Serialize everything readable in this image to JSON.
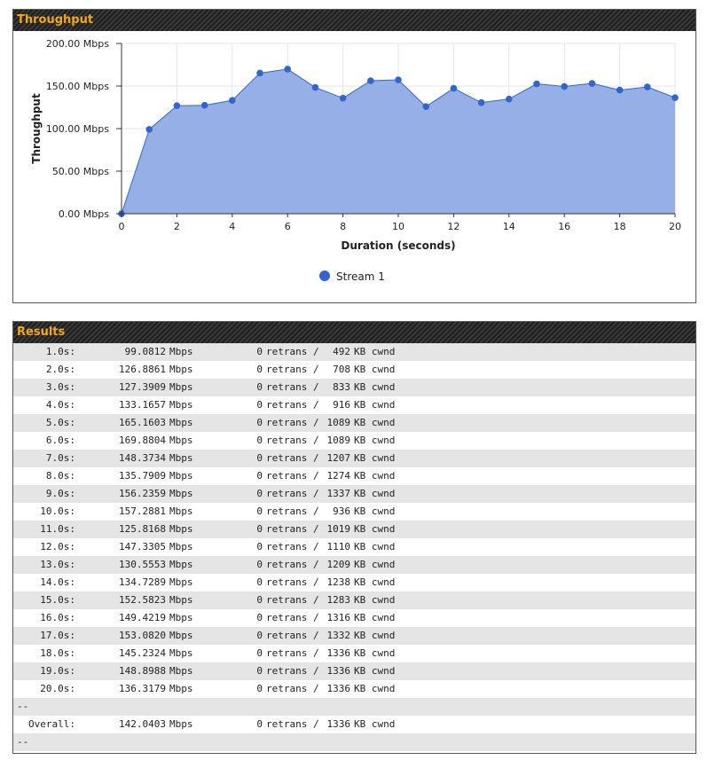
{
  "throughput": {
    "title": "Throughput"
  },
  "chart_data": {
    "type": "area",
    "xlabel": "Duration (seconds)",
    "ylabel": "Throughput",
    "xlim": [
      0,
      20
    ],
    "ylim": [
      0,
      200
    ],
    "x_ticks": [
      "0",
      "2",
      "4",
      "6",
      "8",
      "10",
      "12",
      "14",
      "16",
      "18",
      "20"
    ],
    "y_ticks": [
      "0.00 Mbps",
      "50.00 Mbps",
      "100.00 Mbps",
      "150.00 Mbps",
      "200.00 Mbps"
    ],
    "grid": true,
    "legend_position": "bottom",
    "series": [
      {
        "name": "Stream 1",
        "color": "#3366cc",
        "fill": "#96afe6",
        "x": [
          0,
          1,
          2,
          3,
          4,
          5,
          6,
          7,
          8,
          9,
          10,
          11,
          12,
          13,
          14,
          15,
          16,
          17,
          18,
          19,
          20
        ],
        "y": [
          0,
          99.0812,
          126.8861,
          127.3909,
          133.1657,
          165.1603,
          169.8804,
          148.3734,
          135.7909,
          156.2359,
          157.2881,
          125.8168,
          147.3305,
          130.5553,
          134.7289,
          152.5823,
          149.4219,
          153.082,
          145.2324,
          148.8988,
          136.3179
        ]
      }
    ]
  },
  "results": {
    "title": "Results",
    "rows": [
      {
        "time": "1.0s:",
        "rate": "99.0812",
        "unit": "Mbps",
        "retrans": "0",
        "retrans_label": "retrans /",
        "cwnd": "492",
        "cwnd_label": "KB cwnd"
      },
      {
        "time": "2.0s:",
        "rate": "126.8861",
        "unit": "Mbps",
        "retrans": "0",
        "retrans_label": "retrans /",
        "cwnd": "708",
        "cwnd_label": "KB cwnd"
      },
      {
        "time": "3.0s:",
        "rate": "127.3909",
        "unit": "Mbps",
        "retrans": "0",
        "retrans_label": "retrans /",
        "cwnd": "833",
        "cwnd_label": "KB cwnd"
      },
      {
        "time": "4.0s:",
        "rate": "133.1657",
        "unit": "Mbps",
        "retrans": "0",
        "retrans_label": "retrans /",
        "cwnd": "916",
        "cwnd_label": "KB cwnd"
      },
      {
        "time": "5.0s:",
        "rate": "165.1603",
        "unit": "Mbps",
        "retrans": "0",
        "retrans_label": "retrans /",
        "cwnd": "1089",
        "cwnd_label": "KB cwnd"
      },
      {
        "time": "6.0s:",
        "rate": "169.8804",
        "unit": "Mbps",
        "retrans": "0",
        "retrans_label": "retrans /",
        "cwnd": "1089",
        "cwnd_label": "KB cwnd"
      },
      {
        "time": "7.0s:",
        "rate": "148.3734",
        "unit": "Mbps",
        "retrans": "0",
        "retrans_label": "retrans /",
        "cwnd": "1207",
        "cwnd_label": "KB cwnd"
      },
      {
        "time": "8.0s:",
        "rate": "135.7909",
        "unit": "Mbps",
        "retrans": "0",
        "retrans_label": "retrans /",
        "cwnd": "1274",
        "cwnd_label": "KB cwnd"
      },
      {
        "time": "9.0s:",
        "rate": "156.2359",
        "unit": "Mbps",
        "retrans": "0",
        "retrans_label": "retrans /",
        "cwnd": "1337",
        "cwnd_label": "KB cwnd"
      },
      {
        "time": "10.0s:",
        "rate": "157.2881",
        "unit": "Mbps",
        "retrans": "0",
        "retrans_label": "retrans /",
        "cwnd": "936",
        "cwnd_label": "KB cwnd"
      },
      {
        "time": "11.0s:",
        "rate": "125.8168",
        "unit": "Mbps",
        "retrans": "0",
        "retrans_label": "retrans /",
        "cwnd": "1019",
        "cwnd_label": "KB cwnd"
      },
      {
        "time": "12.0s:",
        "rate": "147.3305",
        "unit": "Mbps",
        "retrans": "0",
        "retrans_label": "retrans /",
        "cwnd": "1110",
        "cwnd_label": "KB cwnd"
      },
      {
        "time": "13.0s:",
        "rate": "130.5553",
        "unit": "Mbps",
        "retrans": "0",
        "retrans_label": "retrans /",
        "cwnd": "1209",
        "cwnd_label": "KB cwnd"
      },
      {
        "time": "14.0s:",
        "rate": "134.7289",
        "unit": "Mbps",
        "retrans": "0",
        "retrans_label": "retrans /",
        "cwnd": "1238",
        "cwnd_label": "KB cwnd"
      },
      {
        "time": "15.0s:",
        "rate": "152.5823",
        "unit": "Mbps",
        "retrans": "0",
        "retrans_label": "retrans /",
        "cwnd": "1283",
        "cwnd_label": "KB cwnd"
      },
      {
        "time": "16.0s:",
        "rate": "149.4219",
        "unit": "Mbps",
        "retrans": "0",
        "retrans_label": "retrans /",
        "cwnd": "1316",
        "cwnd_label": "KB cwnd"
      },
      {
        "time": "17.0s:",
        "rate": "153.0820",
        "unit": "Mbps",
        "retrans": "0",
        "retrans_label": "retrans /",
        "cwnd": "1332",
        "cwnd_label": "KB cwnd"
      },
      {
        "time": "18.0s:",
        "rate": "145.2324",
        "unit": "Mbps",
        "retrans": "0",
        "retrans_label": "retrans /",
        "cwnd": "1336",
        "cwnd_label": "KB cwnd"
      },
      {
        "time": "19.0s:",
        "rate": "148.8988",
        "unit": "Mbps",
        "retrans": "0",
        "retrans_label": "retrans /",
        "cwnd": "1336",
        "cwnd_label": "KB cwnd"
      },
      {
        "time": "20.0s:",
        "rate": "136.3179",
        "unit": "Mbps",
        "retrans": "0",
        "retrans_label": "retrans /",
        "cwnd": "1336",
        "cwnd_label": "KB cwnd"
      }
    ],
    "separator_top": "--",
    "overall": {
      "time": "Overall:",
      "rate": "142.0403",
      "unit": "Mbps",
      "retrans": "0",
      "retrans_label": "retrans /",
      "cwnd": "1336",
      "cwnd_label": "KB cwnd"
    },
    "separator_bottom": "--"
  }
}
